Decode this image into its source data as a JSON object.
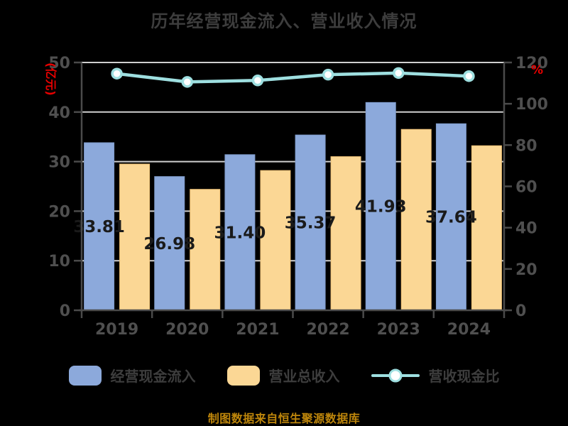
{
  "title": "历年经营现金流入、营业收入情况",
  "footer": "制图数据来自恒生聚源数据库",
  "colors": {
    "background": "#000000",
    "cash_bar": "#8CA9DB",
    "revenue_bar": "#FBD795",
    "ratio_line": "#9EDFE0",
    "axis_label_red": "#E60000",
    "grid": "#CFCFCF",
    "axis": "#4A4A4A",
    "tick_text": "#4F4F4F",
    "title_text": "#3D3D3D",
    "footer_text": "#BE860B",
    "bar_label": "#1A1A1A",
    "marker_fill": "#FFFFFF"
  },
  "left_axis": {
    "label": "(亿元)",
    "ticks": [
      "0",
      "10",
      "20",
      "30",
      "40",
      "50"
    ]
  },
  "right_axis": {
    "label": "%",
    "ticks": [
      "0",
      "20",
      "40",
      "60",
      "80",
      "100",
      "120"
    ]
  },
  "chart_data": {
    "type": "bar",
    "subtype": "grouped-bars-with-line",
    "title": "历年经营现金流入、营业收入情况",
    "categories": [
      "2019",
      "2020",
      "2021",
      "2022",
      "2023",
      "2024"
    ],
    "series": [
      {
        "name": "经营现金流入",
        "type": "bar",
        "axis": "left",
        "values": [
          33.81,
          26.98,
          31.4,
          35.37,
          41.93,
          37.64
        ],
        "labels": [
          "33.81",
          "26.98",
          "31.40",
          "35.37",
          "41.93",
          "37.64"
        ]
      },
      {
        "name": "营业总收入",
        "type": "bar",
        "axis": "left",
        "values": [
          29.5,
          24.4,
          28.2,
          31.0,
          36.5,
          33.2
        ]
      },
      {
        "name": "营收现金比",
        "type": "line",
        "axis": "right",
        "values": [
          114.6,
          110.6,
          111.3,
          114.1,
          114.9,
          113.4
        ]
      }
    ],
    "legend": [
      "经营现金流入",
      "营业总收入",
      "营收现金比"
    ],
    "left_ylim": [
      0,
      50
    ],
    "right_ylim": [
      0,
      120
    ],
    "left_axis_label": "(亿元)",
    "right_axis_label": "%",
    "grid": "horizontal",
    "legend_position": "bottom"
  }
}
